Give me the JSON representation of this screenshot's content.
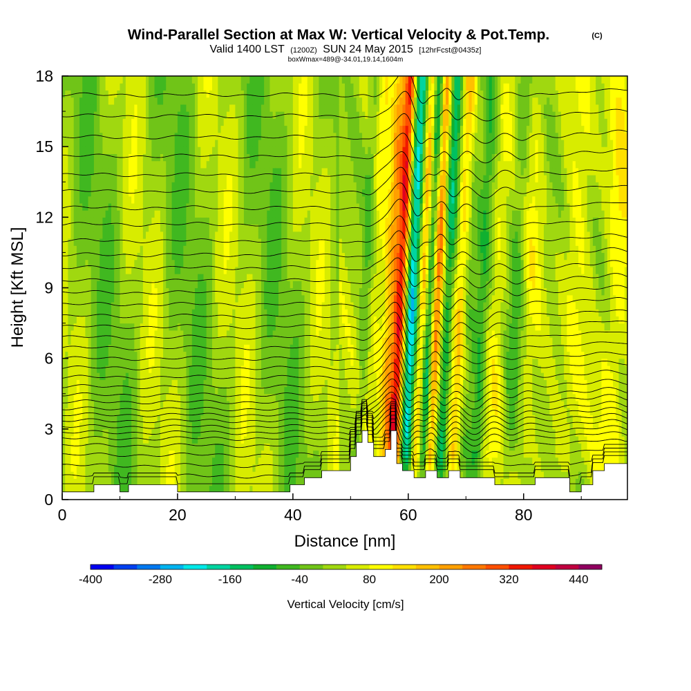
{
  "chart_data": {
    "type": "heatmap",
    "title": "Wind-Parallel Section at Max W: Vertical Velocity & Pot.Temp.",
    "title_mark": "(C)",
    "subtitle_main": "Valid 1400 LST",
    "subtitle_z": "(1200Z)",
    "subtitle_date": "SUN 24 May 2015",
    "subtitle_fcst": "[12hrFcst@0435z]",
    "subtitle_box": "boxWmax=489@-34.01,19.14,1604m",
    "xlabel": "Distance [nm]",
    "ylabel": "Height [Kft MSL]",
    "xlim": [
      0,
      98
    ],
    "ylim": [
      0,
      18
    ],
    "x_ticks": [
      "0",
      "20",
      "40",
      "60",
      "80"
    ],
    "y_ticks": [
      "0",
      "3",
      "6",
      "9",
      "12",
      "15",
      "18"
    ],
    "colorbar": {
      "label": "Vertical Velocity [cm/s]",
      "tick_labels": [
        "-400",
        "-280",
        "-160",
        "-40",
        "80",
        "200",
        "320",
        "440"
      ],
      "range": [
        -400,
        480
      ],
      "colors": [
        "#0000f0",
        "#0040f0",
        "#0078f0",
        "#00b4f0",
        "#00e8e8",
        "#00d4a0",
        "#00c060",
        "#10b030",
        "#40b820",
        "#70c418",
        "#a0d810",
        "#d8ec00",
        "#ffff00",
        "#ffe000",
        "#ffc000",
        "#ffa000",
        "#ff7800",
        "#ff5000",
        "#f01800",
        "#e00020",
        "#c00040",
        "#900060"
      ]
    },
    "terrain": [
      [
        0,
        0.33
      ],
      [
        5.5,
        0.33
      ],
      [
        5.5,
        0.63
      ],
      [
        10,
        0.63
      ],
      [
        10,
        0.33
      ],
      [
        11.5,
        0.33
      ],
      [
        11.5,
        0.63
      ],
      [
        20,
        0.63
      ],
      [
        20,
        0.33
      ],
      [
        25,
        0.33
      ],
      [
        25,
        0.33
      ],
      [
        39.5,
        0.33
      ],
      [
        39.5,
        0.63
      ],
      [
        42,
        0.63
      ],
      [
        42,
        0.93
      ],
      [
        45,
        0.93
      ],
      [
        45,
        1.23
      ],
      [
        50,
        1.23
      ],
      [
        50,
        1.83
      ],
      [
        51,
        1.83
      ],
      [
        51,
        2.43
      ],
      [
        52,
        2.43
      ],
      [
        52,
        2.93
      ],
      [
        53,
        2.93
      ],
      [
        53,
        2.43
      ],
      [
        54,
        2.43
      ],
      [
        54,
        1.83
      ],
      [
        56,
        1.83
      ],
      [
        56,
        2.13
      ],
      [
        57,
        2.13
      ],
      [
        57,
        2.93
      ],
      [
        58,
        2.93
      ],
      [
        58,
        1.53
      ],
      [
        59,
        1.53
      ],
      [
        59,
        1.23
      ],
      [
        61,
        1.23
      ],
      [
        61,
        0.93
      ],
      [
        63,
        0.93
      ],
      [
        63,
        1.23
      ],
      [
        65,
        1.23
      ],
      [
        65,
        0.93
      ],
      [
        67,
        0.93
      ],
      [
        67,
        1.23
      ],
      [
        69,
        1.23
      ],
      [
        69,
        0.93
      ],
      [
        75,
        0.93
      ],
      [
        75,
        0.63
      ],
      [
        82,
        0.63
      ],
      [
        82,
        0.93
      ],
      [
        88,
        0.93
      ],
      [
        88,
        0.33
      ],
      [
        90,
        0.33
      ],
      [
        90,
        0.63
      ],
      [
        92,
        0.63
      ],
      [
        92,
        1.23
      ],
      [
        94,
        1.23
      ],
      [
        94,
        1.53
      ],
      [
        98,
        1.53
      ]
    ],
    "wave_bands": [
      {
        "x": 52.2,
        "w": -60,
        "width": 0.9
      },
      {
        "x": 54.0,
        "w": 60,
        "width": 1.4
      },
      {
        "x": 56.5,
        "w": 160,
        "width": 1.1
      },
      {
        "x": 58.3,
        "w": 340,
        "width": 1.1
      },
      {
        "x": 60.2,
        "w": -250,
        "width": 1.3
      },
      {
        "x": 62.2,
        "w": 220,
        "width": 1.0
      },
      {
        "x": 63.2,
        "w": -220,
        "width": 1.0
      },
      {
        "x": 64.6,
        "w": 240,
        "width": 1.0
      },
      {
        "x": 66.4,
        "w": -160,
        "width": 1.2
      },
      {
        "x": 68.5,
        "w": 130,
        "width": 1.3
      },
      {
        "x": 70.2,
        "w": -50,
        "width": 1.0
      },
      {
        "x": 72.4,
        "w": -110,
        "width": 1.2
      },
      {
        "x": 75.0,
        "w": 60,
        "width": 1.5
      },
      {
        "x": 78.2,
        "w": -70,
        "width": 1.2
      },
      {
        "x": 80.8,
        "w": 50,
        "width": 1.6
      },
      {
        "x": 84.5,
        "w": 0,
        "width": 1.5
      },
      {
        "x": 88.5,
        "w": 50,
        "width": 2.5
      },
      {
        "x": 92.5,
        "w": 0,
        "width": 1.5
      },
      {
        "x": 95.5,
        "w": 80,
        "width": 2.2
      }
    ],
    "isentrope_levels": [
      0.55,
      1.0,
      1.45,
      1.9,
      2.3,
      2.6,
      2.85,
      3.1,
      3.35,
      3.6,
      3.85,
      4.15,
      4.45,
      4.8,
      5.2,
      5.6,
      6.0,
      6.45,
      6.9,
      7.35,
      7.8,
      8.3,
      8.8,
      9.3,
      9.85,
      10.4,
      11.0,
      11.7,
      12.4,
      13.1,
      13.8,
      14.6,
      15.4,
      16.3,
      17.2
    ]
  }
}
